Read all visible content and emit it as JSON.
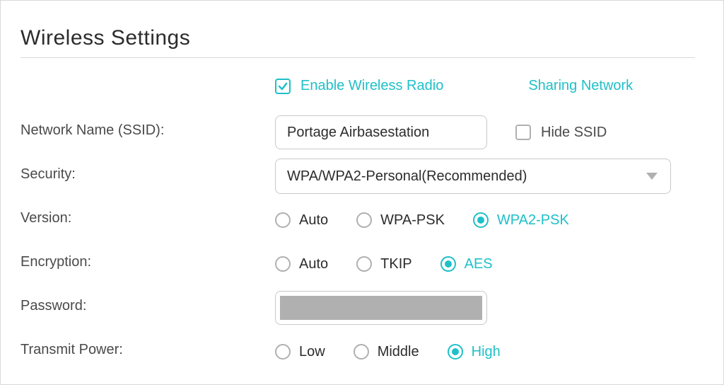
{
  "colors": {
    "accent": "#1fc0c9",
    "text": "#4a4a4a",
    "border": "#c9c9c9"
  },
  "title": "Wireless Settings",
  "enable_radio": {
    "label": "Enable Wireless Radio",
    "checked": true
  },
  "sharing_network": {
    "label": "Sharing Network"
  },
  "ssid": {
    "label": "Network Name (SSID):",
    "value": "Portage Airbasestation"
  },
  "hide_ssid": {
    "label": "Hide SSID",
    "checked": false
  },
  "security": {
    "label": "Security:",
    "selected": "WPA/WPA2-Personal(Recommended)"
  },
  "version": {
    "label": "Version:",
    "options": [
      {
        "label": "Auto",
        "selected": false
      },
      {
        "label": "WPA-PSK",
        "selected": false
      },
      {
        "label": "WPA2-PSK",
        "selected": true
      }
    ]
  },
  "encryption": {
    "label": "Encryption:",
    "options": [
      {
        "label": "Auto",
        "selected": false
      },
      {
        "label": "TKIP",
        "selected": false
      },
      {
        "label": "AES",
        "selected": true
      }
    ]
  },
  "password": {
    "label": "Password:",
    "value": ""
  },
  "transmit_power": {
    "label": "Transmit Power:",
    "options": [
      {
        "label": "Low",
        "selected": false
      },
      {
        "label": "Middle",
        "selected": false
      },
      {
        "label": "High",
        "selected": true
      }
    ]
  }
}
